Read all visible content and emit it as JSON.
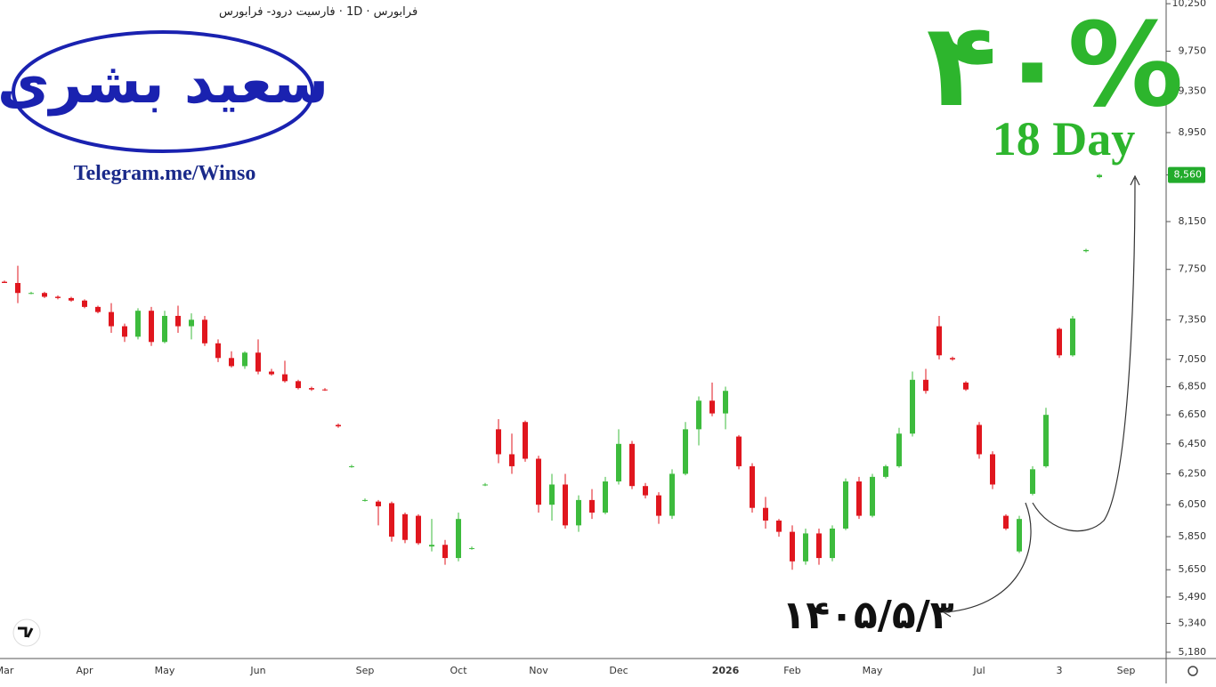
{
  "chart_data": {
    "type": "candlestick",
    "title": "فرابورس · 1D · فارسیت درود- فرابورس",
    "annotations": {
      "logo": "سعید بشری",
      "channel": "Telegram.me/Winso",
      "gain": "۴۰%",
      "duration": "18 Day",
      "date": "۱۴۰۵/۵/۳"
    },
    "log_scale": true,
    "up_color": "#3dbb3d",
    "down_color": "#e0161e",
    "highlight_color": "#22ab2b",
    "ylim": [
      5146,
      10290
    ],
    "yticks": [
      {
        "value": 5180,
        "label": "5,180"
      },
      {
        "value": 5340,
        "label": "5,340"
      },
      {
        "value": 5490,
        "label": "5,490"
      },
      {
        "value": 5650,
        "label": "5,650"
      },
      {
        "value": 5850,
        "label": "5,850"
      },
      {
        "value": 6050,
        "label": "6,050"
      },
      {
        "value": 6250,
        "label": "6,250"
      },
      {
        "value": 6450,
        "label": "6,450"
      },
      {
        "value": 6650,
        "label": "6,650"
      },
      {
        "value": 6850,
        "label": "6,850"
      },
      {
        "value": 7050,
        "label": "7,050"
      },
      {
        "value": 7350,
        "label": "7,350"
      },
      {
        "value": 7750,
        "label": "7,750"
      },
      {
        "value": 8150,
        "label": "8,150"
      },
      {
        "value": 8560,
        "label": "8,560"
      },
      {
        "value": 8950,
        "label": "8,950"
      },
      {
        "value": 9350,
        "label": "9,350"
      },
      {
        "value": 9750,
        "label": "9,750"
      },
      {
        "value": 10250,
        "label": "10,250"
      }
    ],
    "categories": [
      "Mar",
      null,
      null,
      null,
      null,
      null,
      "Apr",
      null,
      null,
      null,
      null,
      null,
      "May",
      null,
      null,
      null,
      null,
      null,
      null,
      "Jun",
      null,
      null,
      null,
      null,
      null,
      null,
      null,
      "Sep",
      null,
      null,
      null,
      null,
      null,
      null,
      "Oct",
      null,
      null,
      null,
      null,
      null,
      "Nov",
      null,
      null,
      null,
      null,
      null,
      "Dec",
      null,
      null,
      null,
      null,
      null,
      null,
      null,
      "2026",
      null,
      null,
      null,
      null,
      "Feb",
      null,
      null,
      null,
      null,
      null,
      "May",
      null,
      null,
      null,
      null,
      null,
      null,
      null,
      "Jul",
      null,
      null,
      null,
      null,
      null,
      "3",
      null,
      null,
      null,
      null,
      "Sep"
    ],
    "ohlc": [
      [
        7650,
        7660,
        7640,
        7640
      ],
      [
        7640,
        7780,
        7480,
        7560
      ],
      [
        7560,
        7570,
        7550,
        7560
      ],
      [
        7560,
        7570,
        7520,
        7530
      ],
      [
        7530,
        7540,
        7510,
        7520
      ],
      [
        7520,
        7530,
        7490,
        7500
      ],
      [
        7500,
        7510,
        7440,
        7450
      ],
      [
        7450,
        7460,
        7400,
        7410
      ],
      [
        7410,
        7480,
        7250,
        7300
      ],
      [
        7300,
        7320,
        7180,
        7220
      ],
      [
        7220,
        7440,
        7200,
        7420
      ],
      [
        7420,
        7450,
        7150,
        7180
      ],
      [
        7180,
        7420,
        7170,
        7380
      ],
      [
        7380,
        7460,
        7250,
        7300
      ],
      [
        7300,
        7400,
        7200,
        7350
      ],
      [
        7350,
        7380,
        7150,
        7170
      ],
      [
        7170,
        7200,
        7030,
        7060
      ],
      [
        7060,
        7110,
        6990,
        7000
      ],
      [
        7000,
        7110,
        6980,
        7100
      ],
      [
        7100,
        7200,
        6940,
        6960
      ],
      [
        6960,
        6980,
        6930,
        6940
      ],
      [
        6940,
        7040,
        6880,
        6890
      ],
      [
        6890,
        6900,
        6830,
        6840
      ],
      [
        6840,
        6850,
        6820,
        6830
      ],
      [
        6830,
        6840,
        6820,
        6825
      ],
      [
        6580,
        6590,
        6560,
        6570
      ],
      [
        6300,
        6310,
        6290,
        6300
      ],
      [
        6080,
        6090,
        6070,
        6080
      ],
      [
        6070,
        6080,
        5920,
        6040
      ],
      [
        6060,
        6070,
        5820,
        5850
      ],
      [
        5990,
        6000,
        5810,
        5830
      ],
      [
        5980,
        5990,
        5800,
        5810
      ],
      [
        5790,
        5960,
        5760,
        5800
      ],
      [
        5800,
        5830,
        5680,
        5720
      ],
      [
        5720,
        6000,
        5700,
        5960
      ],
      [
        5780,
        5790,
        5770,
        5780
      ],
      [
        6180,
        6190,
        6170,
        6180
      ],
      [
        6550,
        6620,
        6320,
        6380
      ],
      [
        6380,
        6520,
        6250,
        6300
      ],
      [
        6600,
        6610,
        6330,
        6350
      ],
      [
        6350,
        6370,
        6000,
        6050
      ],
      [
        6050,
        6250,
        5950,
        6180
      ],
      [
        6180,
        6250,
        5900,
        5920
      ],
      [
        5920,
        6110,
        5880,
        6080
      ],
      [
        6080,
        6150,
        5960,
        6000
      ],
      [
        6000,
        6230,
        5990,
        6200
      ],
      [
        6200,
        6550,
        6180,
        6450
      ],
      [
        6450,
        6470,
        6150,
        6170
      ],
      [
        6170,
        6190,
        6090,
        6110
      ],
      [
        6110,
        6130,
        5930,
        5980
      ],
      [
        5980,
        6280,
        5960,
        6250
      ],
      [
        6250,
        6600,
        6240,
        6550
      ],
      [
        6550,
        6780,
        6440,
        6750
      ],
      [
        6750,
        6880,
        6640,
        6660
      ],
      [
        6660,
        6850,
        6550,
        6820
      ],
      [
        6500,
        6510,
        6280,
        6300
      ],
      [
        6300,
        6320,
        6000,
        6030
      ],
      [
        6030,
        6100,
        5900,
        5950
      ],
      [
        5950,
        5960,
        5850,
        5880
      ],
      [
        5880,
        5920,
        5650,
        5700
      ],
      [
        5700,
        5900,
        5680,
        5870
      ],
      [
        5870,
        5900,
        5680,
        5720
      ],
      [
        5720,
        5920,
        5700,
        5900
      ],
      [
        5900,
        6220,
        5890,
        6200
      ],
      [
        6200,
        6230,
        5960,
        5980
      ],
      [
        5980,
        6250,
        5970,
        6230
      ],
      [
        6230,
        6310,
        6220,
        6300
      ],
      [
        6300,
        6560,
        6290,
        6520
      ],
      [
        6520,
        6960,
        6500,
        6900
      ],
      [
        6900,
        6980,
        6800,
        6820
      ],
      [
        7300,
        7380,
        7050,
        7080
      ],
      [
        7060,
        7070,
        7040,
        7050
      ],
      [
        6880,
        6890,
        6820,
        6830
      ],
      [
        6580,
        6600,
        6350,
        6380
      ],
      [
        6380,
        6400,
        6150,
        6180
      ],
      [
        5980,
        5990,
        5890,
        5900
      ],
      [
        5760,
        5980,
        5750,
        5960
      ],
      [
        6120,
        6300,
        6110,
        6280
      ],
      [
        6300,
        6700,
        6290,
        6650
      ],
      [
        7280,
        7290,
        7060,
        7080
      ],
      [
        7080,
        7380,
        7070,
        7360
      ],
      [
        7900,
        7920,
        7890,
        7910
      ],
      [
        8540,
        8570,
        8530,
        8560
      ],
      null,
      null
    ]
  }
}
